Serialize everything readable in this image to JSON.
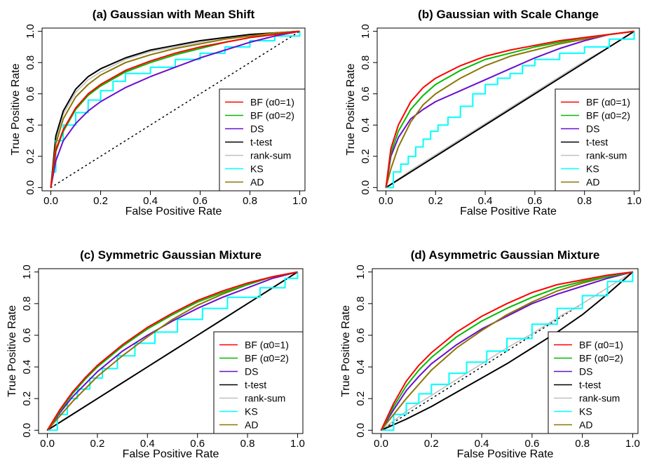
{
  "chart_data": [
    {
      "type": "line",
      "title": "(a) Gaussian with Mean Shift",
      "xlabel": "False Positive Rate",
      "ylabel": "True Positive Rate",
      "xlim": [
        0,
        1
      ],
      "ylim": [
        0,
        1
      ],
      "xticks": [
        "0.0",
        "0.2",
        "0.4",
        "0.6",
        "0.8",
        "1.0"
      ],
      "yticks": [
        "0.0",
        "0.2",
        "0.4",
        "0.6",
        "0.8",
        "1.0"
      ],
      "grid": false,
      "legend_position": "bottom-right",
      "diagonal": "dotted",
      "series": [
        {
          "name": "BF (α0=1)",
          "color": "#ff0000",
          "x": [
            0,
            0.02,
            0.05,
            0.1,
            0.15,
            0.2,
            0.3,
            0.4,
            0.5,
            0.6,
            0.7,
            0.8,
            0.9,
            1
          ],
          "y": [
            0,
            0.24,
            0.37,
            0.51,
            0.6,
            0.66,
            0.75,
            0.81,
            0.86,
            0.9,
            0.93,
            0.96,
            0.98,
            1
          ]
        },
        {
          "name": "BF (α0=2)",
          "color": "#00bb00",
          "x": [
            0,
            0.02,
            0.05,
            0.1,
            0.15,
            0.2,
            0.3,
            0.4,
            0.5,
            0.6,
            0.7,
            0.8,
            0.9,
            1
          ],
          "y": [
            0,
            0.23,
            0.36,
            0.5,
            0.59,
            0.65,
            0.74,
            0.8,
            0.85,
            0.89,
            0.93,
            0.96,
            0.98,
            1
          ]
        },
        {
          "name": "DS",
          "color": "#6a0dcf",
          "x": [
            0,
            0.02,
            0.05,
            0.1,
            0.15,
            0.2,
            0.3,
            0.4,
            0.5,
            0.6,
            0.7,
            0.8,
            0.9,
            1
          ],
          "y": [
            0,
            0.17,
            0.3,
            0.41,
            0.49,
            0.55,
            0.64,
            0.71,
            0.77,
            0.83,
            0.88,
            0.93,
            0.97,
            1
          ]
        },
        {
          "name": "t-test",
          "color": "#000000",
          "x": [
            0,
            0.02,
            0.05,
            0.1,
            0.15,
            0.2,
            0.3,
            0.4,
            0.5,
            0.6,
            0.7,
            0.8,
            0.9,
            1
          ],
          "y": [
            0,
            0.33,
            0.49,
            0.63,
            0.71,
            0.76,
            0.83,
            0.88,
            0.91,
            0.94,
            0.96,
            0.98,
            0.99,
            1
          ]
        },
        {
          "name": "rank-sum",
          "color": "#c0c0c0",
          "x": [
            0,
            0.02,
            0.05,
            0.1,
            0.15,
            0.2,
            0.3,
            0.4,
            0.5,
            0.6,
            0.7,
            0.8,
            0.9,
            1
          ],
          "y": [
            0,
            0.31,
            0.47,
            0.61,
            0.69,
            0.74,
            0.82,
            0.87,
            0.9,
            0.93,
            0.96,
            0.98,
            0.99,
            1
          ]
        },
        {
          "name": "KS",
          "color": "#00ffff",
          "step": true,
          "x": [
            0,
            0.02,
            0.05,
            0.1,
            0.15,
            0.2,
            0.25,
            0.3,
            0.4,
            0.5,
            0.6,
            0.7,
            0.8,
            0.9,
            1
          ],
          "y": [
            0.1,
            0.3,
            0.4,
            0.48,
            0.56,
            0.62,
            0.68,
            0.73,
            0.77,
            0.82,
            0.86,
            0.9,
            0.94,
            0.97,
            1
          ]
        },
        {
          "name": "AD",
          "color": "#8b7500",
          "x": [
            0,
            0.02,
            0.05,
            0.1,
            0.15,
            0.2,
            0.3,
            0.4,
            0.5,
            0.6,
            0.7,
            0.8,
            0.9,
            1
          ],
          "y": [
            0,
            0.28,
            0.44,
            0.58,
            0.66,
            0.72,
            0.8,
            0.85,
            0.89,
            0.92,
            0.95,
            0.97,
            0.99,
            1
          ]
        }
      ]
    },
    {
      "type": "line",
      "title": "(b) Gaussian with Scale Change",
      "xlabel": "False Positive Rate",
      "ylabel": "True Positive Rate",
      "xlim": [
        0,
        1
      ],
      "ylim": [
        0,
        1
      ],
      "xticks": [
        "0.0",
        "0.2",
        "0.4",
        "0.6",
        "0.8",
        "1.0"
      ],
      "yticks": [
        "0.0",
        "0.2",
        "0.4",
        "0.6",
        "0.8",
        "1.0"
      ],
      "grid": false,
      "legend_position": "bottom-right",
      "diagonal": "dotted",
      "series": [
        {
          "name": "BF (α0=1)",
          "color": "#ff0000",
          "x": [
            0,
            0.02,
            0.05,
            0.1,
            0.15,
            0.2,
            0.3,
            0.4,
            0.5,
            0.6,
            0.7,
            0.8,
            0.9,
            1
          ],
          "y": [
            0,
            0.25,
            0.4,
            0.55,
            0.64,
            0.7,
            0.78,
            0.84,
            0.88,
            0.91,
            0.94,
            0.96,
            0.98,
            1
          ]
        },
        {
          "name": "BF (α0=2)",
          "color": "#00bb00",
          "x": [
            0,
            0.02,
            0.05,
            0.1,
            0.15,
            0.2,
            0.3,
            0.4,
            0.5,
            0.6,
            0.7,
            0.8,
            0.9,
            1
          ],
          "y": [
            0,
            0.22,
            0.36,
            0.5,
            0.59,
            0.66,
            0.75,
            0.82,
            0.86,
            0.9,
            0.93,
            0.96,
            0.98,
            1
          ]
        },
        {
          "name": "DS",
          "color": "#6a0dcf",
          "x": [
            0,
            0.02,
            0.05,
            0.1,
            0.15,
            0.2,
            0.3,
            0.4,
            0.5,
            0.6,
            0.7,
            0.8,
            0.9,
            1
          ],
          "y": [
            0,
            0.2,
            0.32,
            0.44,
            0.5,
            0.55,
            0.62,
            0.69,
            0.76,
            0.83,
            0.89,
            0.94,
            0.98,
            1
          ]
        },
        {
          "name": "t-test",
          "color": "#000000",
          "x": [
            0,
            0.1,
            0.2,
            0.3,
            0.4,
            0.5,
            0.6,
            0.7,
            0.8,
            0.9,
            1
          ],
          "y": [
            0,
            0.1,
            0.2,
            0.3,
            0.4,
            0.5,
            0.6,
            0.7,
            0.8,
            0.9,
            1
          ]
        },
        {
          "name": "rank-sum",
          "color": "#c0c0c0",
          "x": [
            0,
            0.1,
            0.2,
            0.3,
            0.4,
            0.5,
            0.6,
            0.7,
            0.8,
            0.9,
            1
          ],
          "y": [
            0,
            0.11,
            0.21,
            0.31,
            0.41,
            0.51,
            0.61,
            0.71,
            0.81,
            0.9,
            1
          ]
        },
        {
          "name": "KS",
          "color": "#00ffff",
          "step": true,
          "x": [
            0,
            0.03,
            0.06,
            0.09,
            0.12,
            0.15,
            0.18,
            0.21,
            0.25,
            0.3,
            0.35,
            0.4,
            0.45,
            0.5,
            0.55,
            0.6,
            0.7,
            0.8,
            0.9,
            1
          ],
          "y": [
            0,
            0.1,
            0.15,
            0.2,
            0.26,
            0.31,
            0.36,
            0.4,
            0.45,
            0.52,
            0.6,
            0.66,
            0.7,
            0.73,
            0.78,
            0.82,
            0.86,
            0.9,
            0.95,
            1
          ]
        },
        {
          "name": "AD",
          "color": "#8b7500",
          "x": [
            0,
            0.02,
            0.05,
            0.1,
            0.15,
            0.2,
            0.3,
            0.4,
            0.5,
            0.6,
            0.7,
            0.8,
            0.9,
            1
          ],
          "y": [
            0,
            0.12,
            0.26,
            0.42,
            0.53,
            0.6,
            0.7,
            0.78,
            0.84,
            0.88,
            0.92,
            0.95,
            0.98,
            1
          ]
        }
      ]
    },
    {
      "type": "line",
      "title": "(c) Symmetric Gaussian Mixture",
      "xlabel": "False Positive Rate",
      "ylabel": "True Positive Rate",
      "xlim": [
        0,
        1
      ],
      "ylim": [
        0,
        1
      ],
      "xticks": [
        "0.0",
        "0.2",
        "0.4",
        "0.6",
        "0.8",
        "1.0"
      ],
      "yticks": [
        "0.0",
        "0.2",
        "0.4",
        "0.6",
        "0.8",
        "1.0"
      ],
      "grid": false,
      "legend_position": "bottom-right",
      "diagonal": "dotted",
      "series": [
        {
          "name": "BF (α0=1)",
          "color": "#ff0000",
          "x": [
            0,
            0.05,
            0.1,
            0.15,
            0.2,
            0.3,
            0.4,
            0.5,
            0.6,
            0.7,
            0.8,
            0.9,
            1
          ],
          "y": [
            0,
            0.13,
            0.24,
            0.33,
            0.41,
            0.54,
            0.65,
            0.74,
            0.82,
            0.88,
            0.93,
            0.97,
            1
          ]
        },
        {
          "name": "BF (α0=2)",
          "color": "#00bb00",
          "x": [
            0,
            0.05,
            0.1,
            0.15,
            0.2,
            0.3,
            0.4,
            0.5,
            0.6,
            0.7,
            0.8,
            0.9,
            1
          ],
          "y": [
            0,
            0.12,
            0.23,
            0.32,
            0.4,
            0.53,
            0.64,
            0.73,
            0.81,
            0.87,
            0.92,
            0.97,
            1
          ]
        },
        {
          "name": "DS",
          "color": "#6a0dcf",
          "x": [
            0,
            0.05,
            0.1,
            0.15,
            0.2,
            0.3,
            0.4,
            0.5,
            0.6,
            0.7,
            0.8,
            0.9,
            1
          ],
          "y": [
            0,
            0.11,
            0.21,
            0.29,
            0.37,
            0.5,
            0.6,
            0.69,
            0.77,
            0.84,
            0.9,
            0.96,
            1
          ]
        },
        {
          "name": "t-test",
          "color": "#000000",
          "x": [
            0,
            0.1,
            0.2,
            0.3,
            0.4,
            0.5,
            0.6,
            0.7,
            0.8,
            0.9,
            1
          ],
          "y": [
            0,
            0.1,
            0.2,
            0.3,
            0.4,
            0.5,
            0.6,
            0.7,
            0.8,
            0.9,
            1
          ]
        },
        {
          "name": "rank-sum",
          "color": "#c0c0c0",
          "x": [
            0,
            0.1,
            0.2,
            0.3,
            0.4,
            0.5,
            0.6,
            0.7,
            0.8,
            0.9,
            1
          ],
          "y": [
            0,
            0.1,
            0.2,
            0.3,
            0.4,
            0.5,
            0.6,
            0.7,
            0.8,
            0.9,
            1
          ]
        },
        {
          "name": "KS",
          "color": "#00ffff",
          "step": true,
          "x": [
            0,
            0.04,
            0.08,
            0.12,
            0.17,
            0.22,
            0.28,
            0.35,
            0.43,
            0.52,
            0.62,
            0.72,
            0.85,
            0.95,
            1
          ],
          "y": [
            0,
            0.1,
            0.2,
            0.26,
            0.33,
            0.39,
            0.47,
            0.55,
            0.62,
            0.7,
            0.77,
            0.84,
            0.9,
            0.96,
            1
          ]
        },
        {
          "name": "AD",
          "color": "#8b7500",
          "x": [
            0,
            0.05,
            0.1,
            0.15,
            0.2,
            0.3,
            0.4,
            0.5,
            0.6,
            0.7,
            0.8,
            0.9,
            1
          ],
          "y": [
            0,
            0.09,
            0.18,
            0.26,
            0.34,
            0.47,
            0.59,
            0.7,
            0.79,
            0.86,
            0.92,
            0.97,
            1
          ]
        }
      ]
    },
    {
      "type": "line",
      "title": "(d) Asymmetric Gaussian Mixture",
      "xlabel": "False Positive Rate",
      "ylabel": "True Positive Rate",
      "xlim": [
        0,
        1
      ],
      "ylim": [
        0,
        1
      ],
      "xticks": [
        "0.0",
        "0.2",
        "0.4",
        "0.6",
        "0.8",
        "1.0"
      ],
      "yticks": [
        "0.0",
        "0.2",
        "0.4",
        "0.6",
        "0.8",
        "1.0"
      ],
      "grid": false,
      "legend_position": "bottom-right",
      "diagonal": "dotted",
      "series": [
        {
          "name": "BF (α0=1)",
          "color": "#ff0000",
          "x": [
            0,
            0.05,
            0.1,
            0.15,
            0.2,
            0.3,
            0.4,
            0.5,
            0.6,
            0.7,
            0.8,
            0.9,
            1
          ],
          "y": [
            0,
            0.17,
            0.31,
            0.41,
            0.49,
            0.62,
            0.72,
            0.8,
            0.87,
            0.92,
            0.95,
            0.98,
            1
          ]
        },
        {
          "name": "BF (α0=2)",
          "color": "#00bb00",
          "x": [
            0,
            0.05,
            0.1,
            0.15,
            0.2,
            0.3,
            0.4,
            0.5,
            0.6,
            0.7,
            0.8,
            0.9,
            1
          ],
          "y": [
            0,
            0.15,
            0.28,
            0.38,
            0.46,
            0.59,
            0.69,
            0.77,
            0.84,
            0.9,
            0.94,
            0.97,
            1
          ]
        },
        {
          "name": "DS",
          "color": "#6a0dcf",
          "x": [
            0,
            0.05,
            0.1,
            0.15,
            0.2,
            0.3,
            0.4,
            0.5,
            0.6,
            0.7,
            0.8,
            0.9,
            1
          ],
          "y": [
            0,
            0.13,
            0.25,
            0.34,
            0.42,
            0.54,
            0.64,
            0.72,
            0.8,
            0.86,
            0.91,
            0.96,
            1
          ]
        },
        {
          "name": "t-test",
          "color": "#000000",
          "x": [
            0,
            0.1,
            0.2,
            0.3,
            0.4,
            0.5,
            0.6,
            0.7,
            0.8,
            0.9,
            1
          ],
          "y": [
            0,
            0.07,
            0.15,
            0.24,
            0.33,
            0.42,
            0.52,
            0.62,
            0.73,
            0.86,
            1
          ]
        },
        {
          "name": "rank-sum",
          "color": "#c0c0c0",
          "x": [
            0,
            0.1,
            0.2,
            0.3,
            0.4,
            0.5,
            0.6,
            0.7,
            0.8,
            0.9,
            1
          ],
          "y": [
            0,
            0.12,
            0.22,
            0.32,
            0.42,
            0.52,
            0.61,
            0.71,
            0.8,
            0.9,
            1
          ]
        },
        {
          "name": "KS",
          "color": "#00ffff",
          "step": true,
          "x": [
            0,
            0.05,
            0.1,
            0.15,
            0.2,
            0.27,
            0.34,
            0.42,
            0.5,
            0.6,
            0.7,
            0.8,
            0.9,
            1
          ],
          "y": [
            0,
            0.1,
            0.17,
            0.23,
            0.29,
            0.36,
            0.43,
            0.5,
            0.58,
            0.67,
            0.77,
            0.85,
            0.94,
            1
          ]
        },
        {
          "name": "AD",
          "color": "#8b7500",
          "x": [
            0,
            0.05,
            0.1,
            0.15,
            0.2,
            0.3,
            0.4,
            0.5,
            0.6,
            0.7,
            0.8,
            0.9,
            1
          ],
          "y": [
            0,
            0.1,
            0.2,
            0.29,
            0.38,
            0.52,
            0.63,
            0.73,
            0.81,
            0.88,
            0.93,
            0.97,
            1
          ]
        }
      ]
    }
  ]
}
